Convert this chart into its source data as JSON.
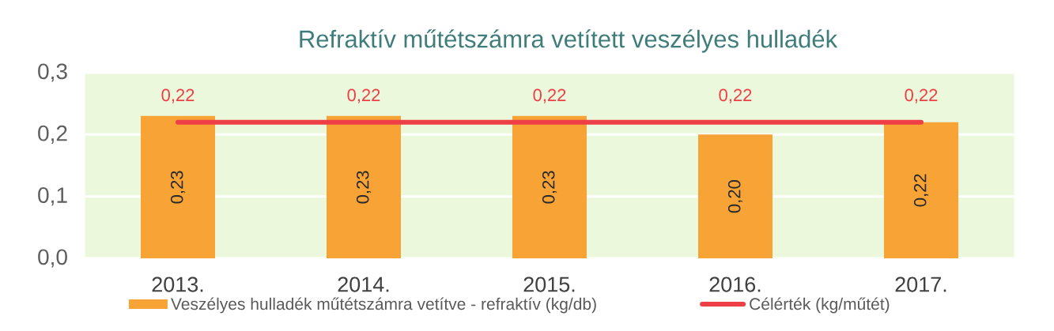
{
  "chart_data": {
    "type": "bar",
    "title": "Refraktív műtétszámra vetített veszélyes hulladék",
    "categories": [
      "2013.",
      "2014.",
      "2015.",
      "2016.",
      "2017."
    ],
    "series": [
      {
        "name": "Veszélyes hulladék műtétszámra vetítve - refraktív (kg/db)",
        "color": "#f7a336",
        "values": [
          0.23,
          0.23,
          0.23,
          0.2,
          0.22
        ],
        "value_labels": [
          "0,23",
          "0,23",
          "0,23",
          "0,20",
          "0,22"
        ]
      },
      {
        "name": "Célérték (kg/műtét)",
        "type": "line",
        "color": "#ee3f47",
        "line_style": "solid",
        "values": [
          0.22,
          0.22,
          0.22,
          0.22,
          0.22
        ],
        "value_labels": [
          "0,22",
          "0,22",
          "0,22",
          "0,22",
          "0,22"
        ]
      }
    ],
    "ylim": [
      0,
      0.3
    ],
    "yticks": [
      {
        "value": 0,
        "label": "0,0"
      },
      {
        "value": 0.1,
        "label": "0,1"
      },
      {
        "value": 0.2,
        "label": "0,2"
      },
      {
        "value": 0.3,
        "label": "0,3"
      }
    ],
    "grid": "y",
    "legend": "bottom"
  }
}
